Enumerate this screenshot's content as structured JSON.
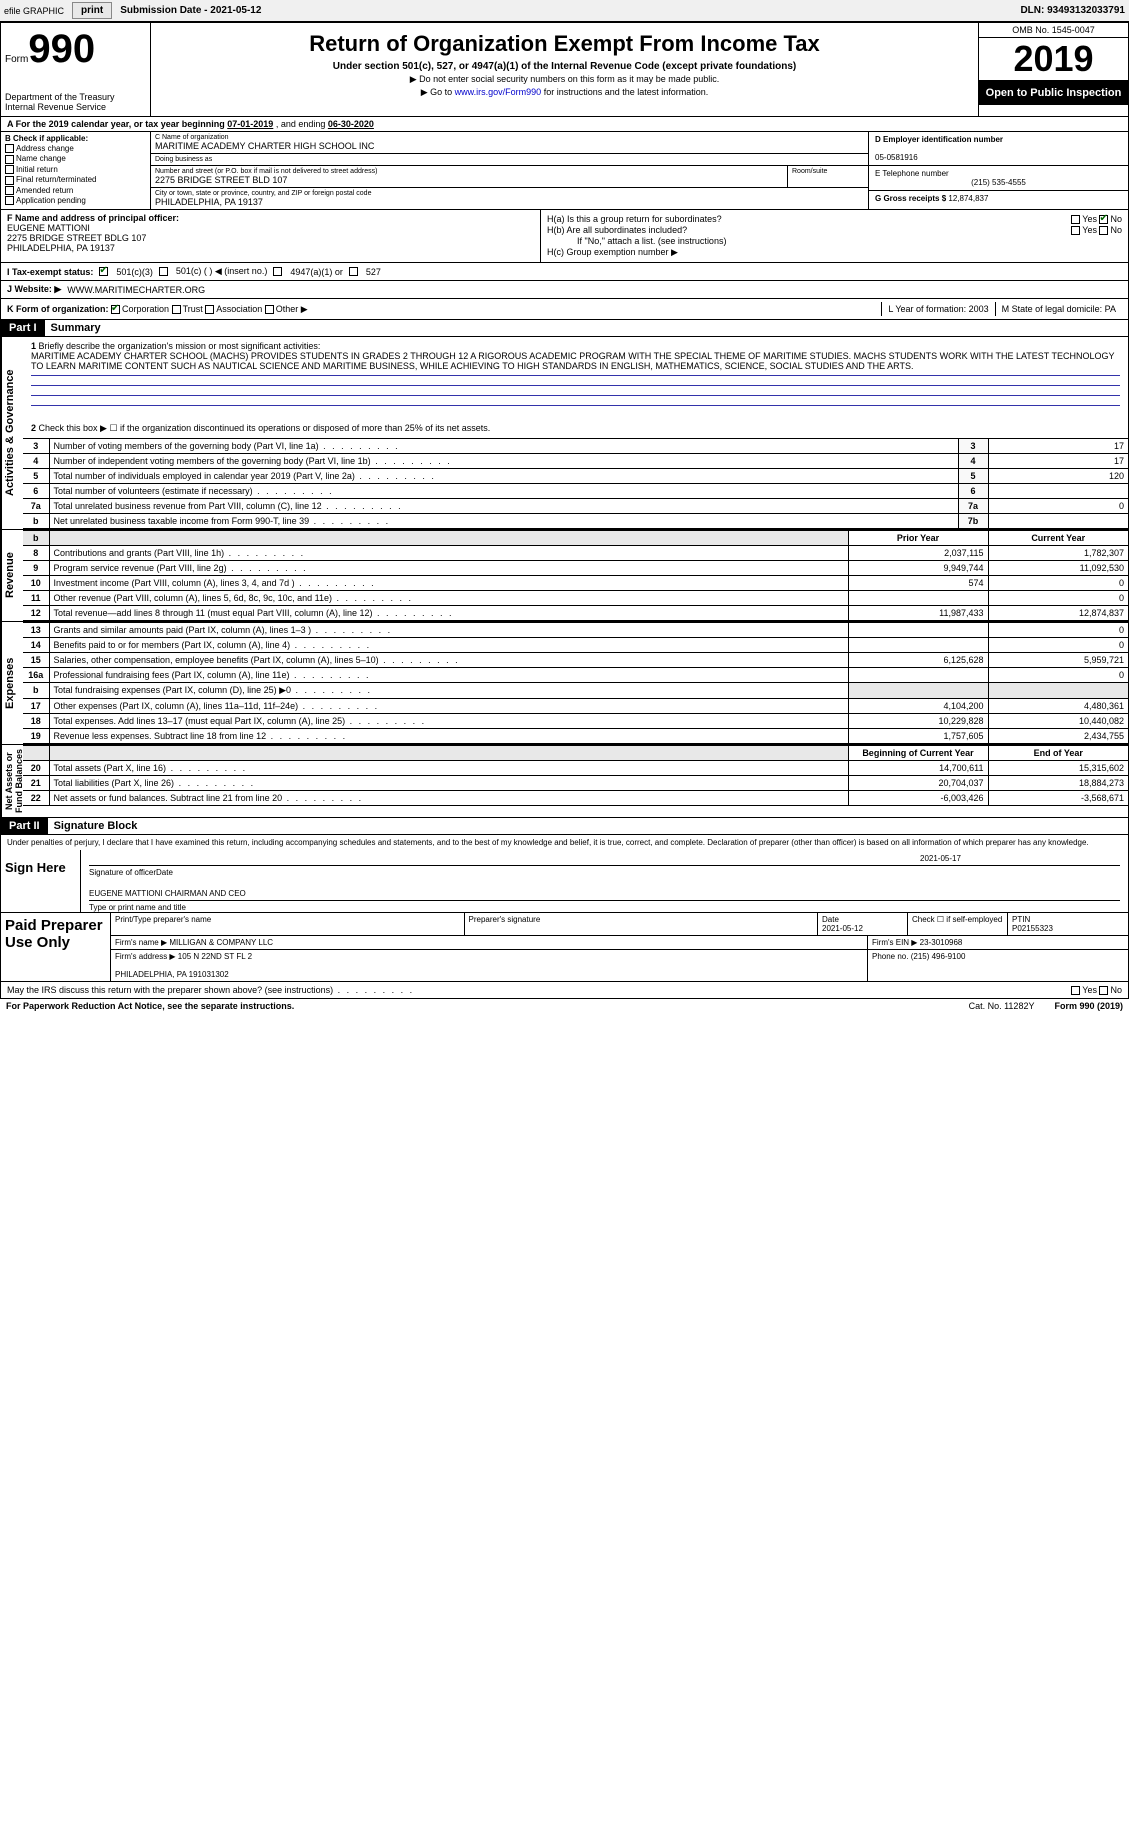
{
  "topbar": {
    "efile": "efile GRAPHIC",
    "print": "print",
    "subdate_lbl": "Submission Date - ",
    "subdate": "2021-05-12",
    "dln_lbl": "DLN: ",
    "dln": "93493132033791"
  },
  "header": {
    "form_word": "Form",
    "form_num": "990",
    "dept": "Department of the Treasury\nInternal Revenue Service",
    "title": "Return of Organization Exempt From Income Tax",
    "subtitle": "Under section 501(c), 527, or 4947(a)(1) of the Internal Revenue Code (except private foundations)",
    "instr1": "▶ Do not enter social security numbers on this form as it may be made public.",
    "instr2_pre": "▶ Go to ",
    "instr2_link": "www.irs.gov/Form990",
    "instr2_post": " for instructions and the latest information.",
    "omb": "OMB No. 1545-0047",
    "year": "2019",
    "open": "Open to Public Inspection"
  },
  "lineA": {
    "pre": "A For the 2019 calendar year, or tax year beginning ",
    "begin": "07-01-2019",
    "mid": " , and ending ",
    "end": "06-30-2020"
  },
  "boxB": {
    "title": "B Check if applicable:",
    "items": [
      "Address change",
      "Name change",
      "Initial return",
      "Final return/terminated",
      "Amended return",
      "Application pending"
    ]
  },
  "boxC": {
    "name_lbl": "C Name of organization",
    "name": "MARITIME ACADEMY CHARTER HIGH SCHOOL INC",
    "dba_lbl": "Doing business as",
    "dba": "",
    "addr_lbl": "Number and street (or P.O. box if mail is not delivered to street address)",
    "room_lbl": "Room/suite",
    "addr": "2275 BRIDGE STREET BLD 107",
    "city_lbl": "City or town, state or province, country, and ZIP or foreign postal code",
    "city": "PHILADELPHIA, PA  19137"
  },
  "boxD": {
    "lbl": "D Employer identification number",
    "val": "05-0581916"
  },
  "boxE": {
    "lbl": "E Telephone number",
    "val": "(215) 535-4555"
  },
  "boxG": {
    "lbl": "G Gross receipts $ ",
    "val": "12,874,837"
  },
  "boxF": {
    "lbl": "F  Name and address of principal officer:",
    "name": "EUGENE MATTIONI",
    "addr1": "2275 BRIDGE STREET BDLG 107",
    "addr2": "PHILADELPHIA, PA  19137"
  },
  "boxH": {
    "a": "H(a)  Is this a group return for subordinates?",
    "b": "H(b)  Are all subordinates included?",
    "bnote": "If \"No,\" attach a list. (see instructions)",
    "c": "H(c)  Group exemption number ▶",
    "yes": "Yes",
    "no": "No"
  },
  "rowI": {
    "lbl": "I   Tax-exempt status:",
    "opt1": "501(c)(3)",
    "opt2": "501(c) (   ) ◀ (insert no.)",
    "opt3": "4947(a)(1) or",
    "opt4": "527"
  },
  "rowJ": {
    "lbl": "J   Website: ▶",
    "val": "WWW.MARITIMECHARTER.ORG"
  },
  "rowK": {
    "lbl": "K Form of organization:",
    "opts": [
      "Corporation",
      "Trust",
      "Association",
      "Other ▶"
    ],
    "L": "L Year of formation: 2003",
    "M": "M State of legal domicile: PA"
  },
  "part1": {
    "hdr": "Part I",
    "title": "Summary"
  },
  "mission": {
    "num": "1",
    "lbl": "Briefly describe the organization's mission or most significant activities:",
    "text": "MARITIME ACADEMY CHARTER SCHOOL (MACHS) PROVIDES STUDENTS IN GRADES 2 THROUGH 12 A RIGOROUS ACADEMIC PROGRAM WITH THE SPECIAL THEME OF MARITIME STUDIES. MACHS STUDENTS WORK WITH THE LATEST TECHNOLOGY TO LEARN MARITIME CONTENT SUCH AS NAUTICAL SCIENCE AND MARITIME BUSINESS, WHILE ACHIEVING TO HIGH STANDARDS IN ENGLISH, MATHEMATICS, SCIENCE, SOCIAL STUDIES AND THE ARTS."
  },
  "gov": {
    "l2": "Check this box ▶ ☐  if the organization discontinued its operations or disposed of more than 25% of its net assets.",
    "rows": [
      {
        "n": "3",
        "d": "Number of voting members of the governing body (Part VI, line 1a)",
        "c": "3",
        "v": "17"
      },
      {
        "n": "4",
        "d": "Number of independent voting members of the governing body (Part VI, line 1b)",
        "c": "4",
        "v": "17"
      },
      {
        "n": "5",
        "d": "Total number of individuals employed in calendar year 2019 (Part V, line 2a)",
        "c": "5",
        "v": "120"
      },
      {
        "n": "6",
        "d": "Total number of volunteers (estimate if necessary)",
        "c": "6",
        "v": ""
      },
      {
        "n": "7a",
        "d": "Total unrelated business revenue from Part VIII, column (C), line 12",
        "c": "7a",
        "v": "0"
      },
      {
        "n": "b",
        "d": "Net unrelated business taxable income from Form 990-T, line 39",
        "c": "7b",
        "v": ""
      }
    ]
  },
  "rev": {
    "hdr_prior": "Prior Year",
    "hdr_curr": "Current Year",
    "rows": [
      {
        "n": "8",
        "d": "Contributions and grants (Part VIII, line 1h)",
        "p": "2,037,115",
        "c": "1,782,307"
      },
      {
        "n": "9",
        "d": "Program service revenue (Part VIII, line 2g)",
        "p": "9,949,744",
        "c": "11,092,530"
      },
      {
        "n": "10",
        "d": "Investment income (Part VIII, column (A), lines 3, 4, and 7d )",
        "p": "574",
        "c": "0"
      },
      {
        "n": "11",
        "d": "Other revenue (Part VIII, column (A), lines 5, 6d, 8c, 9c, 10c, and 11e)",
        "p": "",
        "c": "0"
      },
      {
        "n": "12",
        "d": "Total revenue—add lines 8 through 11 (must equal Part VIII, column (A), line 12)",
        "p": "11,987,433",
        "c": "12,874,837"
      }
    ]
  },
  "exp": {
    "rows": [
      {
        "n": "13",
        "d": "Grants and similar amounts paid (Part IX, column (A), lines 1–3 )",
        "p": "",
        "c": "0"
      },
      {
        "n": "14",
        "d": "Benefits paid to or for members (Part IX, column (A), line 4)",
        "p": "",
        "c": "0"
      },
      {
        "n": "15",
        "d": "Salaries, other compensation, employee benefits (Part IX, column (A), lines 5–10)",
        "p": "6,125,628",
        "c": "5,959,721"
      },
      {
        "n": "16a",
        "d": "Professional fundraising fees (Part IX, column (A), line 11e)",
        "p": "",
        "c": "0"
      },
      {
        "n": "b",
        "d": "Total fundraising expenses (Part IX, column (D), line 25) ▶0",
        "p": "",
        "c": "",
        "gray": true
      },
      {
        "n": "17",
        "d": "Other expenses (Part IX, column (A), lines 11a–11d, 11f–24e)",
        "p": "4,104,200",
        "c": "4,480,361"
      },
      {
        "n": "18",
        "d": "Total expenses. Add lines 13–17 (must equal Part IX, column (A), line 25)",
        "p": "10,229,828",
        "c": "10,440,082"
      },
      {
        "n": "19",
        "d": "Revenue less expenses. Subtract line 18 from line 12",
        "p": "1,757,605",
        "c": "2,434,755"
      }
    ]
  },
  "net": {
    "hdr_beg": "Beginning of Current Year",
    "hdr_end": "End of Year",
    "rows": [
      {
        "n": "20",
        "d": "Total assets (Part X, line 16)",
        "p": "14,700,611",
        "c": "15,315,602"
      },
      {
        "n": "21",
        "d": "Total liabilities (Part X, line 26)",
        "p": "20,704,037",
        "c": "18,884,273"
      },
      {
        "n": "22",
        "d": "Net assets or fund balances. Subtract line 21 from line 20",
        "p": "-6,003,426",
        "c": "-3,568,671"
      }
    ]
  },
  "part2": {
    "hdr": "Part II",
    "title": "Signature Block"
  },
  "sig": {
    "decl": "Under penalties of perjury, I declare that I have examined this return, including accompanying schedules and statements, and to the best of my knowledge and belief, it is true, correct, and complete. Declaration of preparer (other than officer) is based on all information of which preparer has any knowledge.",
    "here": "Sign Here",
    "sigoff": "Signature of officer",
    "date": "2021-05-17",
    "date_lbl": "Date",
    "name": "EUGENE MATTIONI  CHAIRMAN AND CEO",
    "name_lbl": "Type or print name and title"
  },
  "prep": {
    "title": "Paid Preparer Use Only",
    "r1": {
      "a": "Print/Type preparer's name",
      "b": "Preparer's signature",
      "c": "Date\n2021-05-12",
      "d": "Check ☐ if self-employed",
      "e": "PTIN\nP02155323"
    },
    "r2": {
      "a": "Firm's name     ▶ MILLIGAN & COMPANY LLC",
      "b": "Firm's EIN ▶ 23-3010968"
    },
    "r3": {
      "a": "Firm's address ▶ 105 N 22ND ST FL 2\n\nPHILADELPHIA, PA  191031302",
      "b": "Phone no. (215) 496-9100"
    }
  },
  "may": {
    "q": "May the IRS discuss this return with the preparer shown above? (see instructions)",
    "yes": "Yes",
    "no": "No"
  },
  "footer": {
    "l": "For Paperwork Reduction Act Notice, see the separate instructions.",
    "m": "Cat. No. 11282Y",
    "r": "Form 990 (2019)"
  },
  "vtabs": {
    "gov": "Activities & Governance",
    "rev": "Revenue",
    "exp": "Expenses",
    "net": "Net Assets or\nFund Balances"
  }
}
